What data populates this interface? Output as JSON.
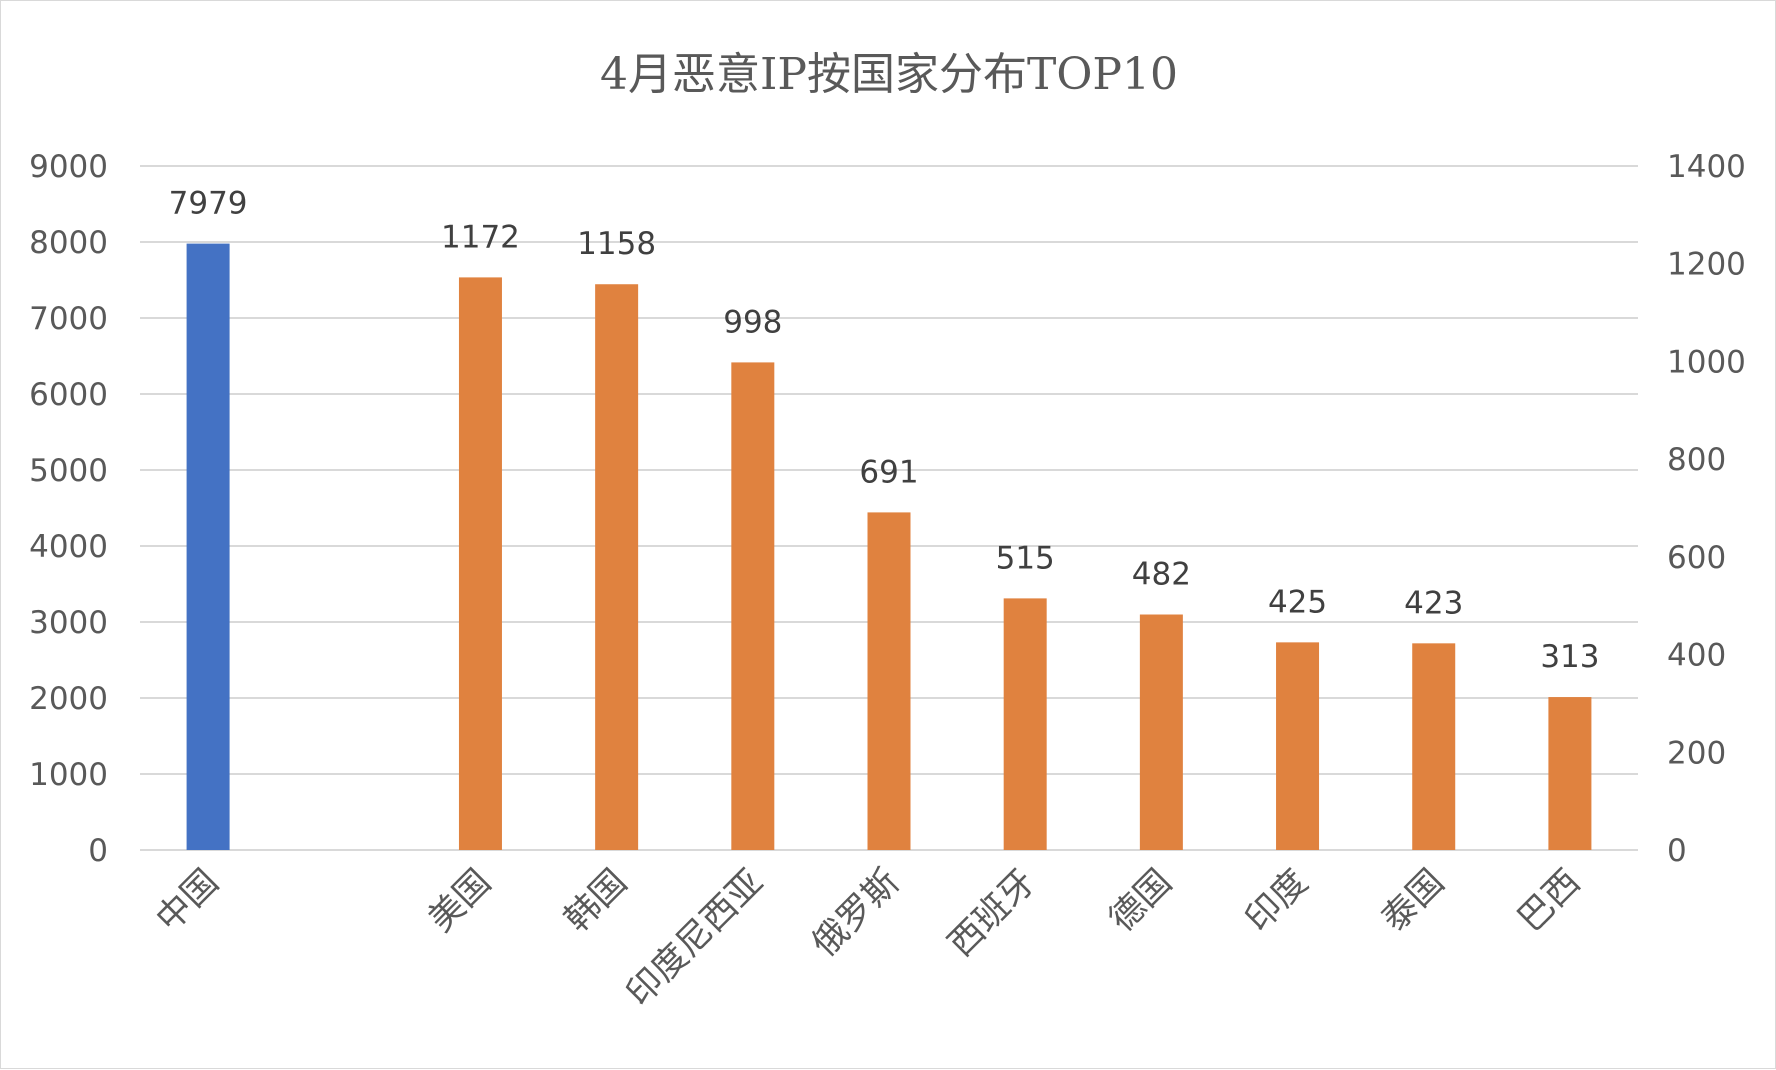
{
  "chart_data": {
    "type": "bar",
    "title": "4月恶意IP按国家分布TOP10",
    "categories": [
      "中国",
      "",
      "美国",
      "韩国",
      "印度尼西亚",
      "俄罗斯",
      "西班牙",
      "德国",
      "印度",
      "泰国",
      "巴西"
    ],
    "series": [
      {
        "axis": "primary",
        "color": "#4472C4",
        "values": [
          7979,
          null,
          null,
          null,
          null,
          null,
          null,
          null,
          null,
          null,
          null
        ]
      },
      {
        "axis": "secondary",
        "color": "#E0823F",
        "values": [
          null,
          null,
          1172,
          1158,
          998,
          691,
          515,
          482,
          425,
          423,
          313
        ]
      }
    ],
    "primary_axis": {
      "ylim": [
        0,
        9000
      ],
      "ticks": [
        "0",
        "1000",
        "2000",
        "3000",
        "4000",
        "5000",
        "6000",
        "7000",
        "8000",
        "9000"
      ]
    },
    "secondary_axis": {
      "ylim": [
        0,
        1400
      ],
      "ticks": [
        "0",
        "200",
        "400",
        "600",
        "800",
        "1000",
        "1200",
        "1400"
      ]
    },
    "data_labels": [
      "7979",
      "",
      "1172",
      "1158",
      "998",
      "691",
      "515",
      "482",
      "425",
      "423",
      "313"
    ],
    "grid": true,
    "legend": "none"
  }
}
